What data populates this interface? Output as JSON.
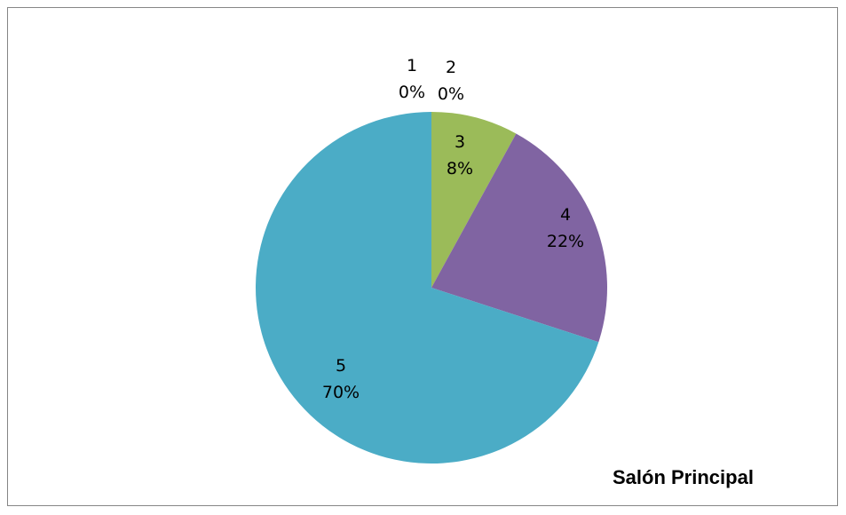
{
  "chart_data": {
    "type": "pie",
    "title": "Salón Principal",
    "categories": [
      "1",
      "2",
      "3",
      "4",
      "5"
    ],
    "values": [
      0,
      0,
      8,
      22,
      70
    ],
    "labels": [
      "0%",
      "0%",
      "8%",
      "22%",
      "70%"
    ],
    "colors": [
      "#4F81BD",
      "#C0504D",
      "#9BBB59",
      "#8064A2",
      "#4BACC6"
    ],
    "start_angle_deg": 0,
    "direction": "clockwise",
    "legend": "none"
  }
}
